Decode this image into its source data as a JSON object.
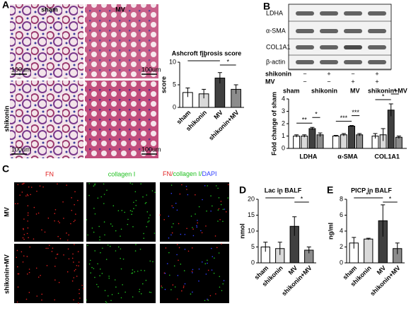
{
  "panel_letters": [
    "A",
    "B",
    "C",
    "D",
    "E"
  ],
  "histology": {
    "columns": [
      "sham",
      "MV"
    ],
    "row_label": "shikonin",
    "scale_bar": "100um"
  },
  "blot": {
    "bands": [
      "LDHA",
      "α-SMA",
      "COL1A1",
      "β-actin"
    ],
    "rows": [
      {
        "label": "shikonin",
        "marks": [
          "−",
          "+",
          "−",
          "+"
        ]
      },
      {
        "label": "MV",
        "marks": [
          "−",
          "−",
          "+",
          "+"
        ]
      }
    ]
  },
  "fluorescence": {
    "columns": [
      "FN",
      "collagen I",
      [
        "FN/",
        "collagen I/",
        "DAPI"
      ]
    ],
    "rows": [
      "MV",
      "shikonin+MV"
    ]
  },
  "chart_data": [
    {
      "type": "bar",
      "title": "Ashcroft fibrosis score",
      "y_label": "score",
      "categories": [
        "sham",
        "shikonin",
        "MV",
        "shikonin+MV"
      ],
      "values": [
        3.3,
        3,
        6.5,
        4
      ],
      "errors": [
        1,
        1,
        1.2,
        1
      ],
      "colors": [
        "#ffffff",
        "#d9d9d9",
        "#404040",
        "#8c8c8c"
      ],
      "ylim": [
        0,
        10
      ],
      "yticks": [
        0,
        5,
        10
      ],
      "annotations": [
        "**",
        "*"
      ]
    },
    {
      "type": "grouped_bar",
      "y_label": "Fold change of sham",
      "categories": [
        "LDHA",
        "α-SMA",
        "COL1A1"
      ],
      "series": [
        {
          "name": "sham",
          "color": "#ffffff",
          "values": [
            1,
            1,
            1
          ],
          "errors": [
            0.1,
            0.05,
            0.2
          ]
        },
        {
          "name": "shikonin",
          "color": "#d9d9d9",
          "values": [
            1,
            1.1,
            1.1
          ],
          "errors": [
            0.1,
            0.1,
            0.5
          ]
        },
        {
          "name": "MV",
          "color": "#404040",
          "values": [
            1.6,
            1.8,
            3.1
          ],
          "errors": [
            0.1,
            0.05,
            0.5
          ]
        },
        {
          "name": "shikonin+MV",
          "color": "#8c8c8c",
          "values": [
            1.1,
            1.1,
            0.9
          ],
          "errors": [
            0.15,
            0.1,
            0.1
          ]
        }
      ],
      "ylim": [
        0,
        4
      ],
      "yticks": [
        0,
        1,
        2,
        3,
        4
      ],
      "annotations": [
        [
          "**",
          "*"
        ],
        [
          "***",
          "***"
        ],
        [
          "*",
          "*"
        ]
      ]
    },
    {
      "type": "bar",
      "title": "Lac in BALF",
      "y_label": "nmol",
      "categories": [
        "sham",
        "shikonin",
        "MV",
        "shikonin+MV"
      ],
      "values": [
        5,
        4.5,
        11.5,
        4
      ],
      "errors": [
        1.5,
        2,
        3,
        1
      ],
      "colors": [
        "#ffffff",
        "#d9d9d9",
        "#404040",
        "#8c8c8c"
      ],
      "ylim": [
        0,
        20
      ],
      "yticks": [
        0,
        5,
        10,
        15,
        20
      ],
      "annotations": [
        "*",
        "*"
      ]
    },
    {
      "type": "bar",
      "title": "PICP in BALF",
      "y_label": "ng/ml",
      "categories": [
        "sham",
        "shikonin",
        "MV",
        "shikonin+MV"
      ],
      "values": [
        2.5,
        3,
        5.3,
        1.8
      ],
      "errors": [
        0.7,
        0.1,
        2,
        0.7
      ],
      "colors": [
        "#ffffff",
        "#d9d9d9",
        "#404040",
        "#8c8c8c"
      ],
      "ylim": [
        0,
        8
      ],
      "yticks": [
        0,
        2,
        4,
        6,
        8
      ],
      "annotations": [
        "**",
        "*"
      ]
    }
  ]
}
